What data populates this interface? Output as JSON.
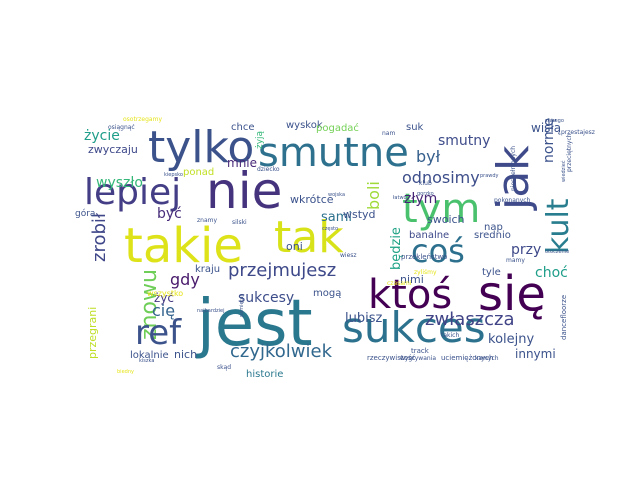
{
  "wordcloud": {
    "words": [
      {
        "text": "jest",
        "color": "#2a788e"
      },
      {
        "text": "takie",
        "color": "#dde318"
      },
      {
        "text": "tak",
        "color": "#d8e219"
      },
      {
        "text": "nie",
        "color": "#46337e"
      },
      {
        "text": "jak",
        "color": "#3e4a89"
      },
      {
        "text": "tylko",
        "color": "#3b528b"
      },
      {
        "text": "smutne",
        "color": "#2d718e"
      },
      {
        "text": "się",
        "color": "#440154"
      },
      {
        "text": "sukces",
        "color": "#2c728e"
      },
      {
        "text": "tym",
        "color": "#4ac16d"
      },
      {
        "text": "ktoś",
        "color": "#440154"
      },
      {
        "text": "lepiej",
        "color": "#433e85"
      },
      {
        "text": "coś",
        "color": "#2d708e"
      },
      {
        "text": "kult",
        "color": "#287d8e"
      },
      {
        "text": "znowu",
        "color": "#6ece58"
      },
      {
        "text": "ref",
        "color": "#3b528b"
      },
      {
        "text": "przejmujesz",
        "color": "#3e4989"
      },
      {
        "text": "czyjkolwiek",
        "color": "#31688e"
      },
      {
        "text": "zrobił",
        "color": "#3f4788"
      },
      {
        "text": "zwłaszcza",
        "color": "#414487"
      },
      {
        "text": "był",
        "color": "#355f8d"
      },
      {
        "text": "odnosimy",
        "color": "#3d4e8a"
      },
      {
        "text": "smutny",
        "color": "#3e4c8a"
      },
      {
        "text": "boli",
        "color": "#a0da39"
      },
      {
        "text": "gdy",
        "color": "#481a6c"
      },
      {
        "text": "cię",
        "color": "#33638d"
      },
      {
        "text": "sukcesy",
        "color": "#3d4d8a"
      },
      {
        "text": "życie",
        "color": "#1f9e89"
      },
      {
        "text": "wyszło",
        "color": "#35b779"
      },
      {
        "text": "mnie",
        "color": "#482878"
      },
      {
        "text": "złym",
        "color": "#482677"
      },
      {
        "text": "sami",
        "color": "#2c728e"
      },
      {
        "text": "być",
        "color": "#472c7a"
      },
      {
        "text": "żyć",
        "color": "#443a83"
      },
      {
        "text": "lubisz",
        "color": "#3b528b"
      },
      {
        "text": "kolejny",
        "color": "#3b528b"
      },
      {
        "text": "innymi",
        "color": "#3b528b"
      },
      {
        "text": "przy",
        "color": "#3e4989"
      },
      {
        "text": "choć",
        "color": "#1f9e89"
      },
      {
        "text": "normę",
        "color": "#3b528b"
      },
      {
        "text": "wisłą",
        "color": "#3b528b"
      },
      {
        "text": "suk",
        "color": "#3b528b"
      },
      {
        "text": "chce",
        "color": "#3b528b"
      },
      {
        "text": "wyskok",
        "color": "#3b528b"
      },
      {
        "text": "pogadać",
        "color": "#73d055"
      },
      {
        "text": "zwyczaju",
        "color": "#3e4989"
      },
      {
        "text": "wkrótce",
        "color": "#3b528b"
      },
      {
        "text": "swoich",
        "color": "#3b528b"
      },
      {
        "text": "będzie",
        "color": "#20a386"
      },
      {
        "text": "nimi",
        "color": "#3b528b"
      },
      {
        "text": "banalne",
        "color": "#3e4989"
      },
      {
        "text": "srednio",
        "color": "#3b528b"
      },
      {
        "text": "oni",
        "color": "#3b528b"
      },
      {
        "text": "kraju",
        "color": "#3b528b"
      },
      {
        "text": "mogą",
        "color": "#3b528b"
      },
      {
        "text": "wstyd",
        "color": "#3b528b"
      },
      {
        "text": "historie",
        "color": "#2a788e"
      },
      {
        "text": "przegrani",
        "color": "#bddf26"
      },
      {
        "text": "lokalnie",
        "color": "#3b528b"
      },
      {
        "text": "nich",
        "color": "#3b528b"
      },
      {
        "text": "tyle",
        "color": "#3b528b"
      },
      {
        "text": "ponad",
        "color": "#c2df23"
      },
      {
        "text": "góra",
        "color": "#3b528b"
      },
      {
        "text": "żyją",
        "color": "#35b779"
      },
      {
        "text": "nap",
        "color": "#3b528b"
      },
      {
        "text": "track",
        "color": "#3b528b"
      },
      {
        "text": "osiągnąć",
        "color": "#3b528b"
      },
      {
        "text": "wszystko",
        "color": "#e5e419"
      },
      {
        "text": "rzeczywistość",
        "color": "#3b528b"
      },
      {
        "text": "uciemiężonych",
        "color": "#3b528b"
      },
      {
        "text": "wygrywania",
        "color": "#3b528b"
      },
      {
        "text": "dancefloorze",
        "color": "#3b528b"
      },
      {
        "text": "kamych",
        "color": "#3b528b"
      },
      {
        "text": "przekleństwo",
        "color": "#3b528b"
      },
      {
        "text": "dziecko",
        "color": "#3b528b"
      },
      {
        "text": "pokonanych",
        "color": "#3b528b"
      },
      {
        "text": "osotrzegamy",
        "color": "#e5e419"
      },
      {
        "text": "nam",
        "color": "#3b528b"
      },
      {
        "text": "kiepsko",
        "color": "#3b528b"
      },
      {
        "text": "klub",
        "color": "#3b528b"
      },
      {
        "text": "takich",
        "color": "#3b528b"
      },
      {
        "text": "gorzko",
        "color": "#3b528b"
      },
      {
        "text": "często",
        "color": "#3b528b"
      },
      {
        "text": "mamy",
        "color": "#3b528b"
      },
      {
        "text": "wiesz",
        "color": "#3b528b"
      },
      {
        "text": "silski",
        "color": "#3b528b"
      },
      {
        "text": "znamy",
        "color": "#3b528b"
      },
      {
        "text": "zyliśmy",
        "color": "#e5e419"
      },
      {
        "text": "czasami",
        "color": "#e5e419"
      },
      {
        "text": "skąd",
        "color": "#3b528b"
      },
      {
        "text": "kiszka",
        "color": "#3b528b"
      },
      {
        "text": "pamiętaj",
        "color": "#3b528b"
      },
      {
        "text": "najbardziej",
        "color": "#3b528b"
      },
      {
        "text": "wojska",
        "color": "#3b528b"
      },
      {
        "text": "niespełnionych",
        "color": "#3b528b"
      },
      {
        "text": "przeciętnych",
        "color": "#3b528b"
      },
      {
        "text": "przestajesz",
        "color": "#3b528b"
      },
      {
        "text": "wiedzieć",
        "color": "#3b528b"
      },
      {
        "text": "starego",
        "color": "#3b528b"
      },
      {
        "text": "łatwo",
        "color": "#3b528b"
      },
      {
        "text": "prawdy",
        "color": "#3b528b"
      },
      {
        "text": "otoczenie",
        "color": "#3b528b"
      },
      {
        "text": "biedny",
        "color": "#e5e419"
      }
    ]
  }
}
